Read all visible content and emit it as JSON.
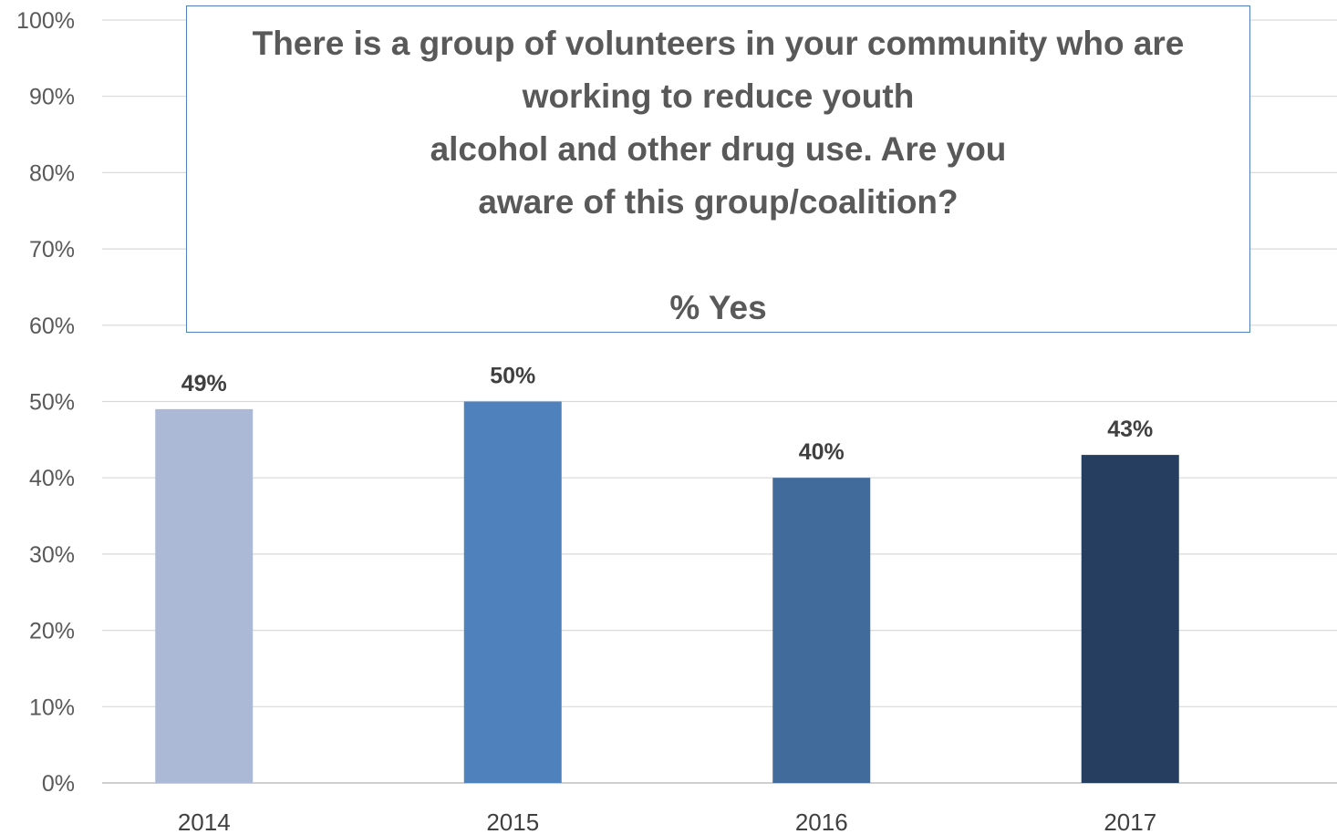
{
  "chart_data": {
    "type": "bar",
    "title_lines": [
      "There is a group of volunteers in your community who are",
      "working to reduce youth",
      "alcohol and other drug use. Are you",
      "aware of this group/coalition?"
    ],
    "subtitle": "% Yes",
    "categories": [
      "2014",
      "2015",
      "2016",
      "2017"
    ],
    "values": [
      49,
      50,
      40,
      43
    ],
    "data_labels": [
      "49%",
      "50%",
      "40%",
      "43%"
    ],
    "colors": [
      "#abb9d7",
      "#4f81bd",
      "#416b9b",
      "#263f60"
    ],
    "ylim": [
      0,
      100
    ],
    "yticks": [
      "0%",
      "10%",
      "20%",
      "30%",
      "40%",
      "50%",
      "60%",
      "70%",
      "80%",
      "90%",
      "100%"
    ],
    "grid": true
  }
}
